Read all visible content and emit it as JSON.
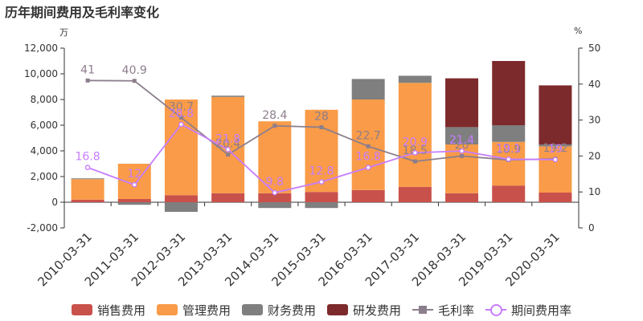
{
  "title": "历年期间费用及毛利率变化",
  "left_unit": "万",
  "right_unit": "%",
  "colors": {
    "sales": "#c9514b",
    "admin": "#f99b48",
    "finance": "#7f7f7f",
    "rd": "#7d2a2d",
    "gross": "#8c7e8c",
    "period": "#c77dff"
  },
  "legend": [
    {
      "name": "销售费用",
      "kind": "bar",
      "color_key": "sales"
    },
    {
      "name": "管理费用",
      "kind": "bar",
      "color_key": "admin"
    },
    {
      "name": "财务费用",
      "kind": "bar",
      "color_key": "finance"
    },
    {
      "name": "研发费用",
      "kind": "bar",
      "color_key": "rd"
    },
    {
      "name": "毛利率",
      "kind": "line-square",
      "color_key": "gross"
    },
    {
      "name": "期间费用率",
      "kind": "line-circle",
      "color_key": "period"
    }
  ],
  "chart_data": {
    "type": "bar",
    "stacked": true,
    "categories": [
      "2010-03-31",
      "2011-03-31",
      "2012-03-31",
      "2013-03-31",
      "2014-03-31",
      "2015-03-31",
      "2016-03-31",
      "2017-03-31",
      "2018-03-31",
      "2019-03-31",
      "2020-03-31"
    ],
    "series": [
      {
        "name": "销售费用",
        "values": [
          200,
          250,
          550,
          700,
          700,
          800,
          950,
          1200,
          700,
          1300,
          750
        ]
      },
      {
        "name": "管理费用",
        "values": [
          1600,
          2750,
          7450,
          7500,
          5600,
          6400,
          7050,
          8100,
          3800,
          3400,
          3600
        ]
      },
      {
        "name": "财务费用",
        "values": [
          60,
          -200,
          -750,
          100,
          -450,
          -450,
          1600,
          550,
          1350,
          1300,
          150
        ]
      },
      {
        "name": "研发费用",
        "values": [
          0,
          0,
          0,
          0,
          0,
          0,
          0,
          0,
          3800,
          5000,
          4600
        ]
      }
    ],
    "lines": [
      {
        "name": "毛利率",
        "values": [
          41,
          40.9,
          30.7,
          20.4,
          28.4,
          28,
          22.7,
          18.5,
          20,
          18.9,
          19.2
        ],
        "labels": [
          "41",
          "40.9",
          "30.7",
          "20.4",
          "28.4",
          "28",
          "22.7",
          "18.5",
          "20",
          "18.9",
          "19.2"
        ]
      },
      {
        "name": "期间费用率",
        "values": [
          16.8,
          12,
          28.8,
          21.8,
          9.8,
          12.8,
          16.8,
          20.9,
          21.4,
          19.1,
          19
        ],
        "labels": [
          "16.8",
          "12",
          "28.8",
          "21.8",
          "9.8",
          "12.8",
          "16.8",
          "20.9",
          "21.4",
          "19.1",
          "19"
        ]
      }
    ],
    "y_left": {
      "min": -2000,
      "max": 12000,
      "ticks": [
        -2000,
        0,
        2000,
        4000,
        6000,
        8000,
        10000,
        12000
      ],
      "tick_labels": [
        "-2,000",
        "0",
        "2,000",
        "4,000",
        "6,000",
        "8,000",
        "10,000",
        "12,000"
      ]
    },
    "y_right": {
      "min": 0,
      "max": 50,
      "ticks": [
        0,
        10,
        20,
        30,
        40,
        50
      ],
      "tick_labels": [
        "0",
        "10",
        "20",
        "30",
        "40",
        "50"
      ]
    },
    "grid": false,
    "legend_position": "bottom"
  }
}
